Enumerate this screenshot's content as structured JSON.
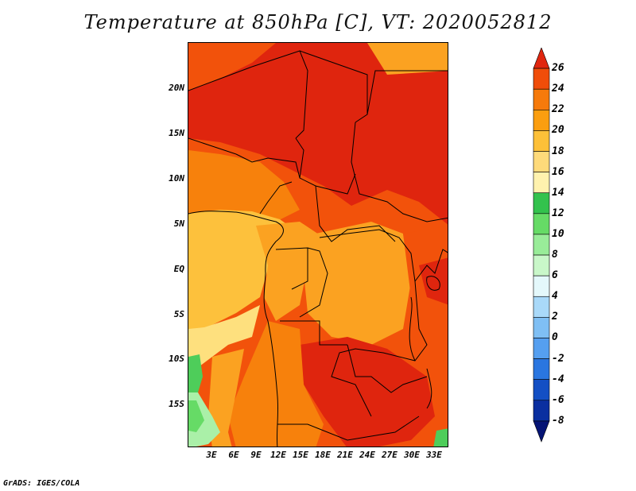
{
  "title": "Temperature at 850hPa [C], VT: 2020052812",
  "footer": "GrADS: IGES/COLA",
  "map": {
    "lat_labels": [
      "20N",
      "15N",
      "10N",
      "5N",
      "EQ",
      "5S",
      "10S",
      "15S"
    ],
    "lon_labels": [
      "3E",
      "6E",
      "9E",
      "12E",
      "15E",
      "18E",
      "21E",
      "24E",
      "27E",
      "30E",
      "33E"
    ]
  },
  "colorbar": {
    "labels": [
      "26",
      "24",
      "22",
      "20",
      "18",
      "16",
      "14",
      "12",
      "10",
      "8",
      "6",
      "4",
      "2",
      "0",
      "-2",
      "-4",
      "-6",
      "-8"
    ],
    "colors": [
      "#e0260f",
      "#f04d0a",
      "#f67a0b",
      "#fb9e0f",
      "#fdc038",
      "#feda7a",
      "#fff2ae",
      "#33c24d",
      "#66db66",
      "#99ec99",
      "#c9f7c9",
      "#e4f8fb",
      "#a9d9f9",
      "#7fbff4",
      "#559ff0",
      "#2a76e0",
      "#134fc4",
      "#0a2fa0",
      "#051475"
    ]
  },
  "colors": {
    "hot": "#df250e",
    "warm": "#f2520b",
    "mild": "#f7810c",
    "cool": "#fba221",
    "cooler": "#fdc13c",
    "pale": "#fee07e",
    "green": "#4ecd5a",
    "lightgreen": "#aaf0a8"
  }
}
